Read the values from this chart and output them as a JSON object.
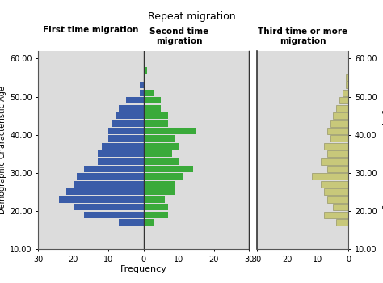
{
  "title": "Repeat migration",
  "xlabel": "Frequency",
  "ylabel_left": "Demographic Characteristic Age",
  "ylabel_right": "Demographic Characteristic Age",
  "col1_label": "First time migration",
  "col2_label": "Second time\nmigration",
  "col3_label": "Third time or more\nmigration",
  "age_labels": [
    "60.00",
    "50.00",
    "40.00",
    "30.00",
    "20.00",
    "10.00"
  ],
  "age_ticks": [
    60,
    50,
    40,
    30,
    20,
    10
  ],
  "ages": [
    57,
    55,
    53,
    51,
    49,
    47,
    45,
    43,
    41,
    39,
    37,
    35,
    33,
    31,
    29,
    27,
    25,
    23,
    21,
    19,
    17
  ],
  "blue_values": [
    0,
    0,
    1,
    1,
    5,
    7,
    8,
    9,
    10,
    10,
    12,
    13,
    13,
    17,
    19,
    20,
    22,
    24,
    20,
    17,
    7
  ],
  "green_values": [
    1,
    0,
    0,
    3,
    5,
    5,
    7,
    7,
    15,
    9,
    10,
    8,
    10,
    14,
    11,
    9,
    9,
    6,
    7,
    7,
    3
  ],
  "tan_ages": [
    57,
    55,
    53,
    51,
    49,
    47,
    45,
    43,
    41,
    39,
    37,
    35,
    33,
    31,
    29,
    27,
    25,
    23,
    21,
    19,
    17
  ],
  "tan_values": [
    0,
    1,
    1,
    2,
    3,
    4,
    5,
    6,
    7,
    6,
    8,
    7,
    9,
    7,
    12,
    9,
    8,
    7,
    5,
    8,
    4
  ],
  "blue_color": "#3a5ca8",
  "green_color": "#3aaa3a",
  "tan_color": "#c8c87a",
  "tan_edge_color": "#888855",
  "bg_color": "#dcdcdc",
  "bar_height": 1.7,
  "ylim_low": 10,
  "ylim_high": 62,
  "pyramid_xlim": 30,
  "tan_xlim": 30
}
